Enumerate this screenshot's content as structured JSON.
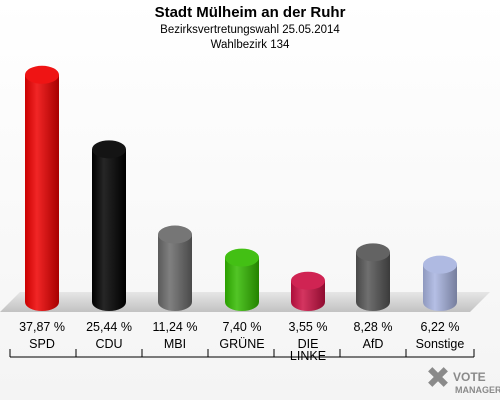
{
  "chart_data": {
    "type": "bar",
    "title": "Stadt Mülheim an der Ruhr",
    "subtitle": "Bezirksvertretungswahl 25.05.2014",
    "subtitle2": "Wahlbezirk 134",
    "categories": [
      "SPD",
      "CDU",
      "MBI",
      "GRÜNE",
      "DIE LINKE",
      "AfD",
      "Sonstige"
    ],
    "category_lines": [
      [
        "SPD"
      ],
      [
        "CDU"
      ],
      [
        "MBI"
      ],
      [
        "GRÜNE"
      ],
      [
        "DIE",
        "LINKE"
      ],
      [
        "AfD"
      ],
      [
        "Sonstige"
      ]
    ],
    "values": [
      37.87,
      25.44,
      11.24,
      7.4,
      3.55,
      8.28,
      6.22
    ],
    "value_labels": [
      "37,87 %",
      "25,44 %",
      "11,24 %",
      "7,40 %",
      "3,55 %",
      "8,28 %",
      "6,22 %"
    ],
    "colors": [
      "#ee0000",
      "#000000",
      "#6a6a6a",
      "#33bb00",
      "#cc1144",
      "#555555",
      "#a8b4e0"
    ],
    "ylim": [
      0,
      40
    ],
    "grid": false,
    "legend": "none"
  },
  "watermark": {
    "line1": "VOTE",
    "line2": "MANAGER"
  }
}
